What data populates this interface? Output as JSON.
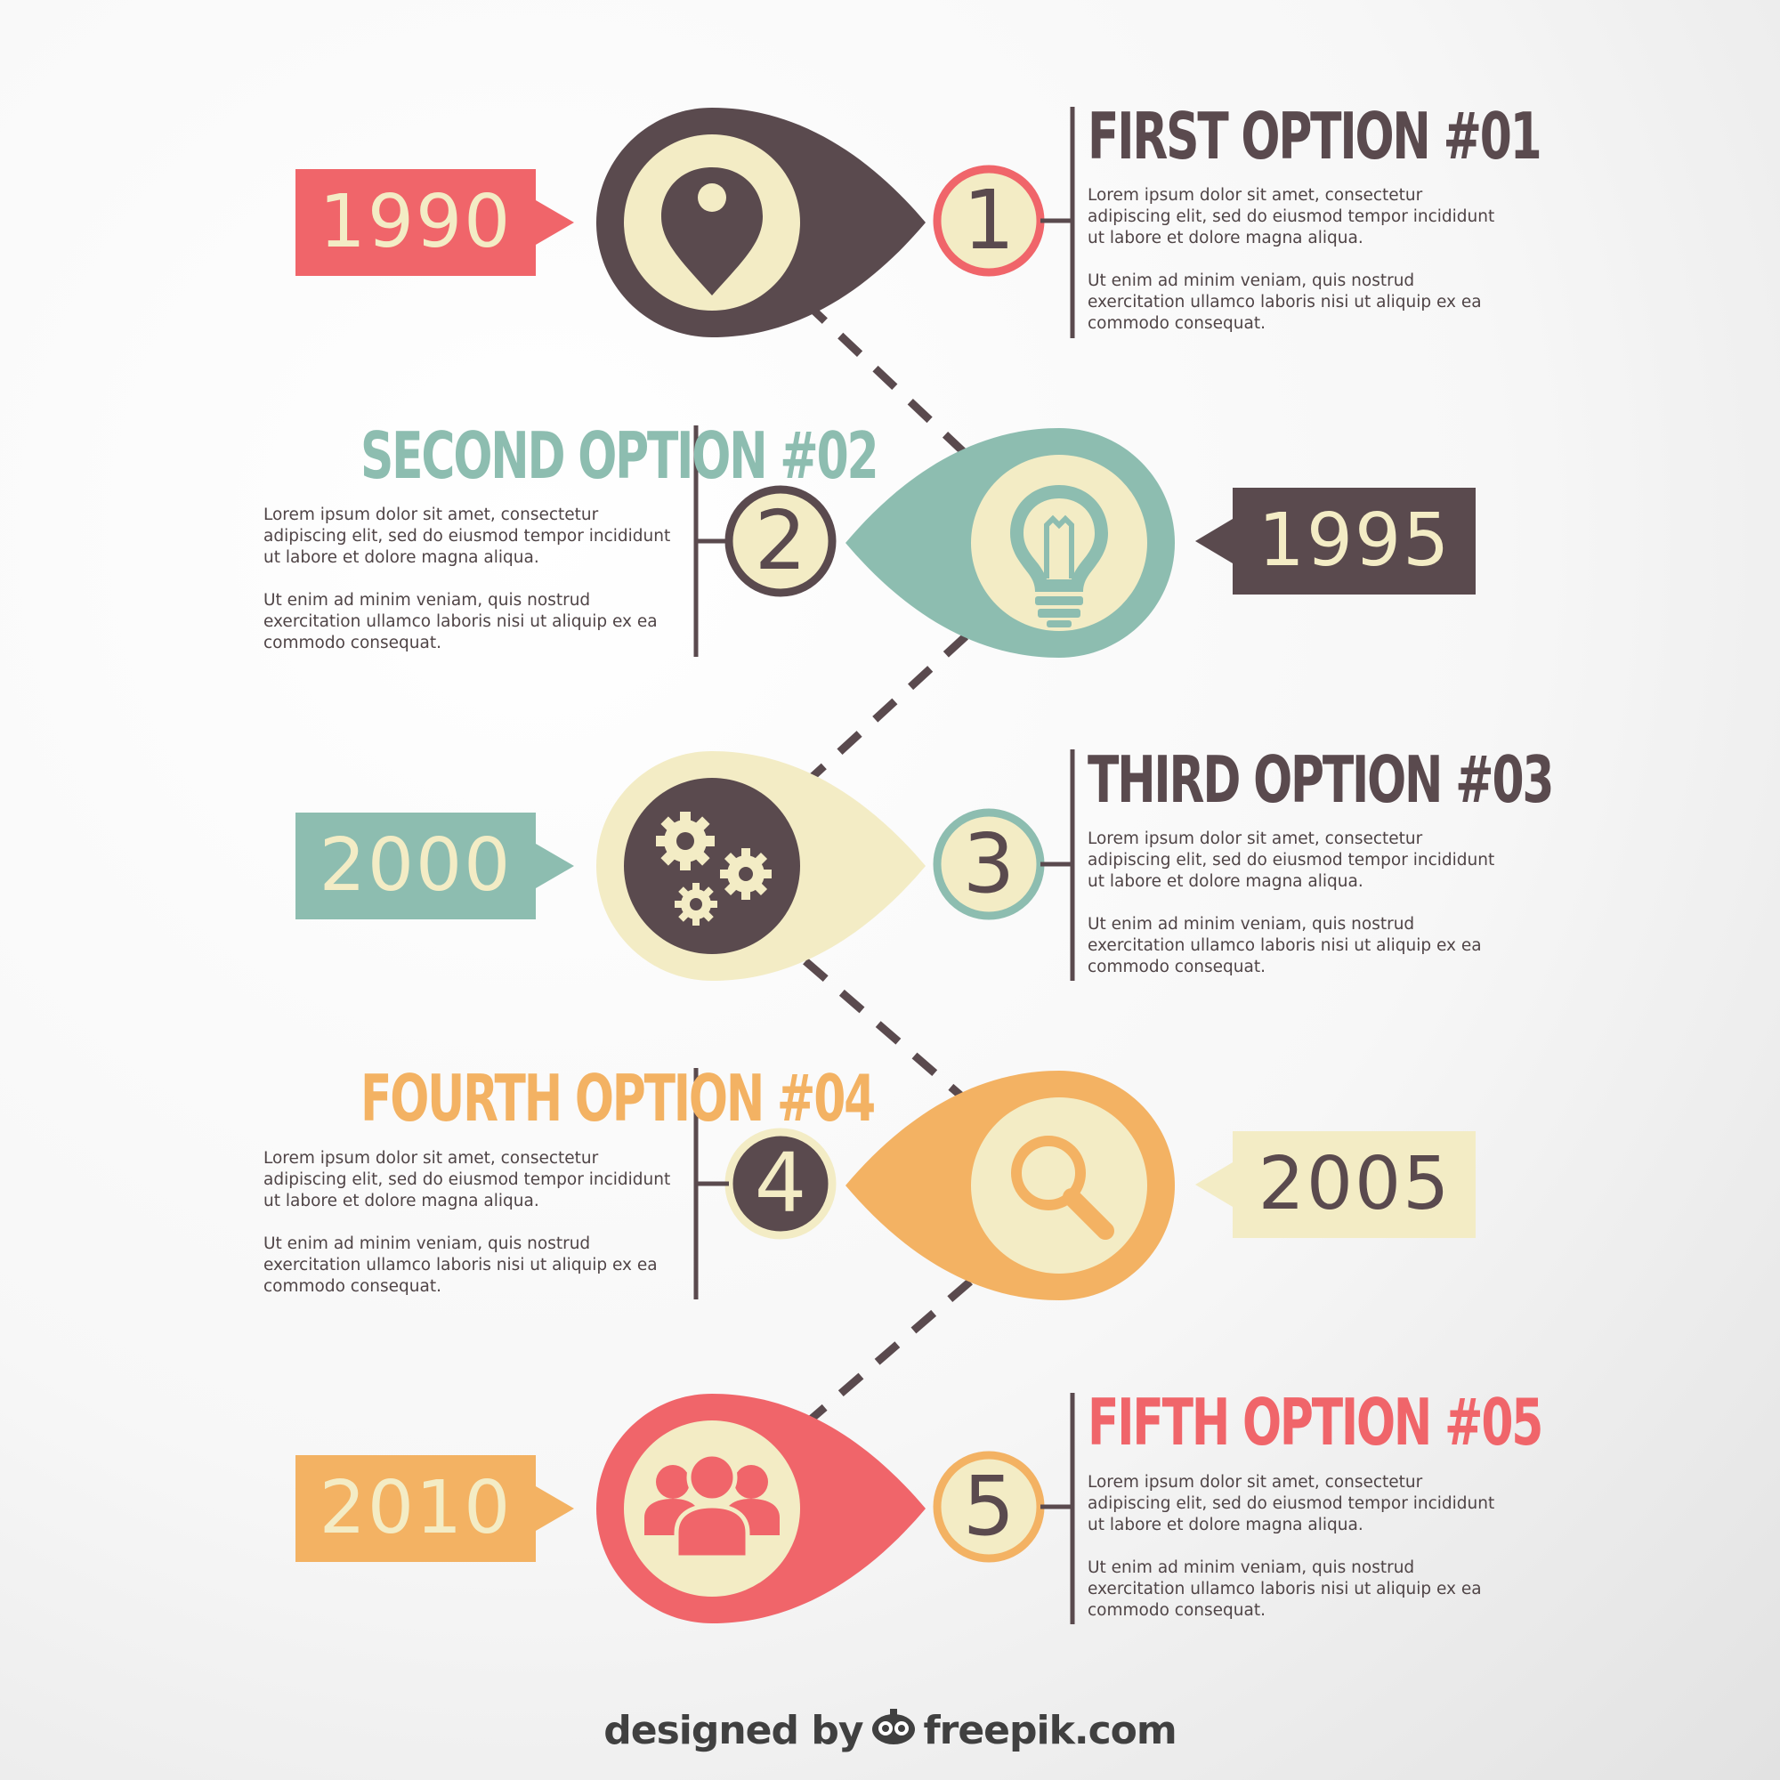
{
  "colors": {
    "dark": "#5a4a4e",
    "cream": "#f3ecc5",
    "red": "#f0656a",
    "teal": "#8dbdb0",
    "orange": "#f3b263",
    "text": "#4f4446"
  },
  "steps": [
    {
      "year": "1990",
      "number": "1",
      "title": "FIRST OPTION #01",
      "para1": "Lorem ipsum dolor sit amet, consectetur adipiscing elit, sed do eiusmod tempor incididunt ut labore et dolore magna aliqua.",
      "para2": "Ut enim ad minim veniam, quis nostrud exercitation ullamco laboris nisi ut aliquip ex ea commodo consequat.",
      "icon": "map-pin-icon"
    },
    {
      "year": "1995",
      "number": "2",
      "title": "SECOND OPTION #02",
      "para1": "Lorem ipsum dolor sit amet, consectetur adipiscing elit, sed do eiusmod tempor incididunt ut labore et dolore magna aliqua.",
      "para2": "Ut enim ad minim veniam, quis nostrud exercitation ullamco laboris nisi ut aliquip ex ea commodo consequat.",
      "icon": "light-bulb-icon"
    },
    {
      "year": "2000",
      "number": "3",
      "title": "THIRD OPTION #03",
      "para1": "Lorem ipsum dolor sit amet, consectetur adipiscing elit, sed do eiusmod tempor incididunt ut labore et dolore magna aliqua.",
      "para2": "Ut enim ad minim veniam, quis nostrud exercitation ullamco laboris nisi ut aliquip ex ea commodo consequat.",
      "icon": "gears-icon"
    },
    {
      "year": "2005",
      "number": "4",
      "title": "FOURTH OPTION #04",
      "para1": "Lorem ipsum dolor sit amet, consectetur adipiscing elit, sed do eiusmod tempor incididunt ut labore et dolore magna aliqua.",
      "para2": "Ut enim ad minim veniam, quis nostrud exercitation ullamco laboris nisi ut aliquip ex ea commodo consequat.",
      "icon": "magnifier-icon"
    },
    {
      "year": "2010",
      "number": "5",
      "title": "FIFTH OPTION #05",
      "para1": "Lorem ipsum dolor sit amet, consectetur adipiscing elit, sed do eiusmod tempor incididunt ut labore et dolore magna aliqua.",
      "para2": "Ut enim ad minim veniam, quis nostrud exercitation ullamco laboris nisi ut aliquip ex ea commodo consequat.",
      "icon": "people-group-icon"
    }
  ],
  "credit": {
    "prefix": "designed by",
    "brand": "freepik.com"
  }
}
